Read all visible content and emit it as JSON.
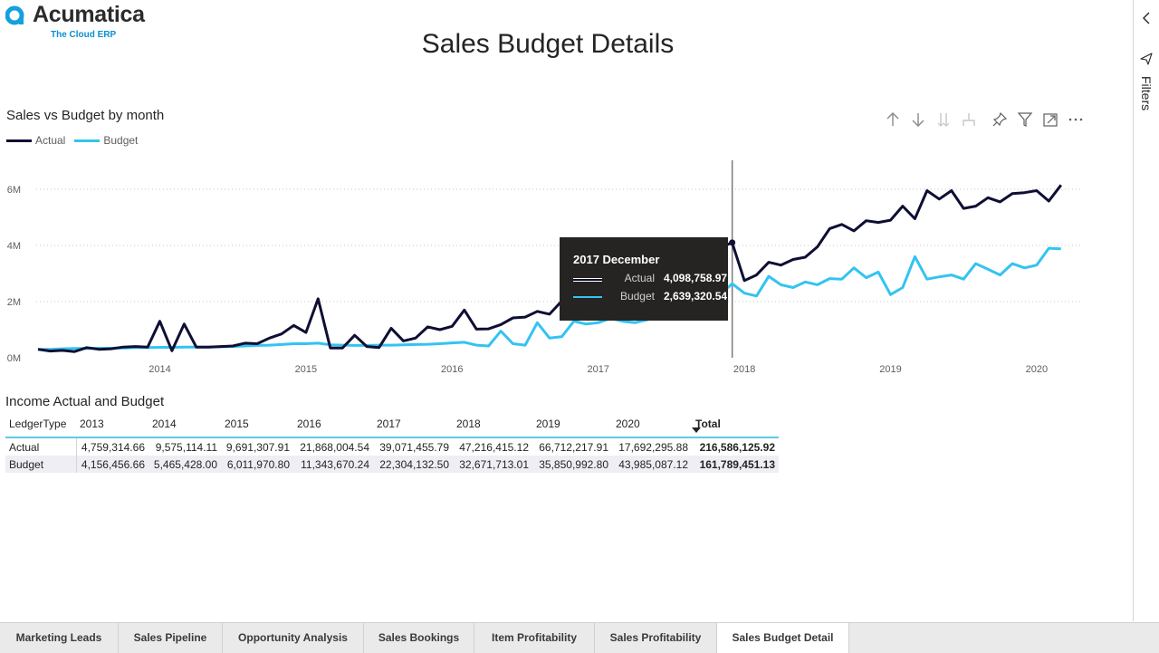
{
  "brand": {
    "name": "Acumatica",
    "tagline": "The Cloud ERP"
  },
  "page": {
    "title": "Sales Budget Details"
  },
  "filter_pane": {
    "label": "Filters"
  },
  "chart_section": {
    "title": "Sales vs Budget by month"
  },
  "toolbar": {
    "icons": [
      "drill-up-icon",
      "drill-down-icon",
      "expand-all-down-icon",
      "expand-hierarchy-icon",
      "pin-icon",
      "filter-icon",
      "focus-mode-icon",
      "more-options-icon"
    ]
  },
  "colors": {
    "actual": "#0f0e33",
    "budget": "#33c3f2"
  },
  "chart_data": {
    "type": "line",
    "title": "Sales vs Budget by month",
    "xlabel": "",
    "ylabel": "",
    "ylim": [
      0,
      7000000
    ],
    "yticks": [
      "0M",
      "2M",
      "4M",
      "6M"
    ],
    "ytick_values": [
      0,
      2000000,
      4000000,
      6000000
    ],
    "xticks": [
      "2014",
      "2015",
      "2016",
      "2017",
      "2018",
      "2019",
      "2020"
    ],
    "legend": "top-left",
    "x_start": "2013-03",
    "series": [
      {
        "name": "Actual",
        "values": [
          0.3,
          0.24,
          0.26,
          0.22,
          0.36,
          0.3,
          0.32,
          0.38,
          0.4,
          0.38,
          1.3,
          0.25,
          1.2,
          0.38,
          0.38,
          0.4,
          0.42,
          0.52,
          0.5,
          0.7,
          0.85,
          1.15,
          0.9,
          2.1,
          0.35,
          0.35,
          0.8,
          0.4,
          0.36,
          1.05,
          0.6,
          0.7,
          1.1,
          1.0,
          1.12,
          1.7,
          1.02,
          1.03,
          1.18,
          1.42,
          1.45,
          1.65,
          1.55,
          2.02,
          2.0,
          2.1,
          2.3,
          2.4,
          2.6,
          2.62,
          2.8,
          3.0,
          3.1,
          3.3,
          3.5,
          3.7,
          3.92,
          4.1,
          2.75,
          2.95,
          3.4,
          3.3,
          3.5,
          3.58,
          3.95,
          4.6,
          4.75,
          4.52,
          4.88,
          4.82,
          4.9,
          5.4,
          4.95,
          5.95,
          5.65,
          5.95,
          5.32,
          5.4,
          5.7,
          5.55,
          5.85,
          5.88,
          5.95,
          5.58,
          6.15
        ]
      },
      {
        "name": "Budget",
        "values": [
          0.3,
          0.3,
          0.32,
          0.33,
          0.33,
          0.34,
          0.34,
          0.35,
          0.36,
          0.36,
          0.37,
          0.37,
          0.38,
          0.38,
          0.38,
          0.39,
          0.4,
          0.42,
          0.44,
          0.45,
          0.47,
          0.5,
          0.5,
          0.52,
          0.46,
          0.45,
          0.44,
          0.44,
          0.45,
          0.45,
          0.46,
          0.47,
          0.48,
          0.5,
          0.53,
          0.55,
          0.45,
          0.42,
          0.95,
          0.5,
          0.45,
          1.25,
          0.7,
          0.75,
          1.3,
          1.2,
          1.25,
          1.4,
          1.3,
          1.25,
          1.35,
          1.55,
          1.8,
          2.0,
          2.2,
          2.4,
          2.25,
          2.64,
          2.3,
          2.2,
          2.9,
          2.6,
          2.5,
          2.7,
          2.6,
          2.82,
          2.8,
          3.2,
          2.85,
          3.05,
          2.25,
          2.5,
          3.6,
          2.8,
          2.88,
          2.95,
          2.8,
          3.35,
          3.15,
          2.95,
          3.35,
          3.2,
          3.3,
          3.9,
          3.88
        ]
      }
    ],
    "values_unit": "M",
    "hover": {
      "index": 57,
      "title": "2017 December",
      "rows": [
        {
          "name": "Actual",
          "value": "4,098,758.97"
        },
        {
          "name": "Budget",
          "value": "2,639,320.54"
        }
      ]
    }
  },
  "table": {
    "title": "Income Actual and Budget",
    "row_header": "LedgerType",
    "columns": [
      "2013",
      "2014",
      "2015",
      "2016",
      "2017",
      "2018",
      "2019",
      "2020"
    ],
    "total_header": "Total",
    "rows": [
      {
        "label": "Actual",
        "values": [
          "4,759,314.66",
          "9,575,114.11",
          "9,691,307.91",
          "21,868,004.54",
          "39,071,455.79",
          "47,216,415.12",
          "66,712,217.91",
          "17,692,295.88"
        ],
        "total": "216,586,125.92"
      },
      {
        "label": "Budget",
        "values": [
          "4,156,456.66",
          "5,465,428.00",
          "6,011,970.80",
          "11,343,670.24",
          "22,304,132.50",
          "32,671,713.01",
          "35,850,992.80",
          "43,985,087.12"
        ],
        "total": "161,789,451.13"
      }
    ]
  },
  "tabs": [
    {
      "label": "Marketing Leads",
      "active": false
    },
    {
      "label": "Sales Pipeline",
      "active": false
    },
    {
      "label": "Opportunity Analysis",
      "active": false
    },
    {
      "label": "Sales Bookings",
      "active": false
    },
    {
      "label": "Item Profitability",
      "active": false
    },
    {
      "label": "Sales Profitability",
      "active": false
    },
    {
      "label": "Sales Budget Detail",
      "active": true
    }
  ]
}
